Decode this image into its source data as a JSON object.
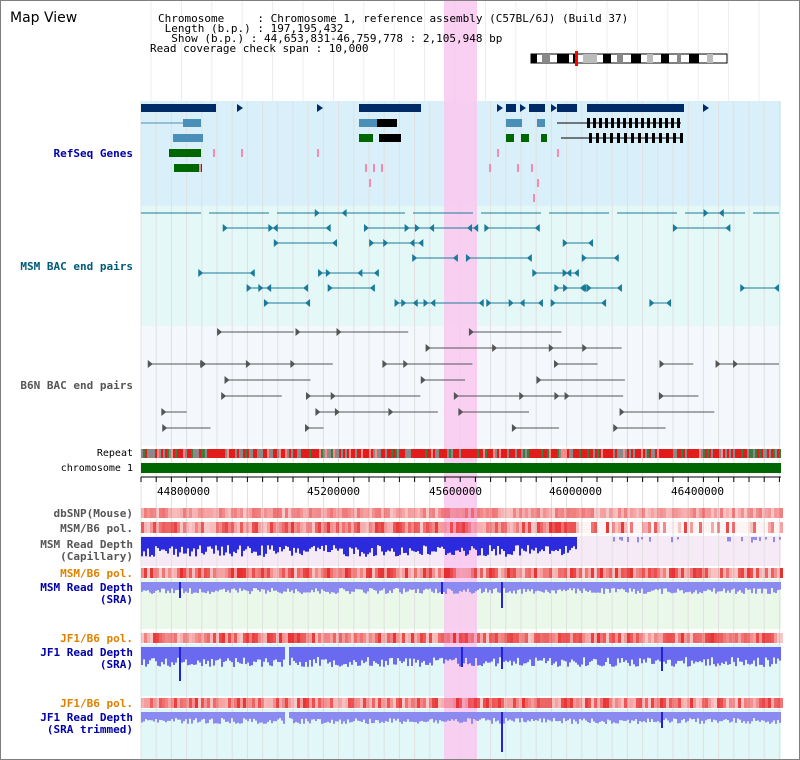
{
  "view": {
    "title": "Map View"
  },
  "header": {
    "line1": "Chromosome     : Chromosome 1, reference assembly (C57BL/6J) (Build 37)",
    "line2": " Length (b.p.) : 197,195,432",
    "line3": "  Show (b.p.) : 44,653,831-46,759,778 : 2,105,948 bp",
    "line4": "Read coverage check span : 10,000"
  },
  "tracks": {
    "refseq": "RefSeq Genes",
    "msm_bac": "MSM BAC end pairs",
    "b6n_bac": "B6N BAC end pairs",
    "repeat": "Repeat",
    "chromosome": "chromosome 1",
    "dbsnp": "dbSNP(Mouse)",
    "msm_pol1": "MSM/B6 pol.",
    "msm_depth_cap_1": "MSM Read Depth",
    "msm_depth_cap_2": "(Capillary)",
    "msm_pol2": "MSM/B6 pol.",
    "msm_depth_sra_1": "MSM Read Depth",
    "msm_depth_sra_2": "(SRA)",
    "jf1_pol1": "JF1/B6 pol.",
    "jf1_depth_sra_1": "JF1 Read Depth",
    "jf1_depth_sra_2": "(SRA)",
    "jf1_pol2": "JF1/B6 pol.",
    "jf1_depth_tr_1": "JF1 Read Depth",
    "jf1_depth_tr_2": "(SRA trimmed)"
  },
  "axis": {
    "ticks": [
      "44800000",
      "45200000",
      "45600000",
      "46000000",
      "46400000"
    ]
  },
  "colors": {
    "label_blue": "#0000aa",
    "label_teal": "#005a78",
    "label_orange": "#e08000",
    "gene_navy": "#002b66",
    "gene_green": "#006600",
    "highlight_pink": "#f9c8f0",
    "chromosome_green": "#006600"
  }
}
